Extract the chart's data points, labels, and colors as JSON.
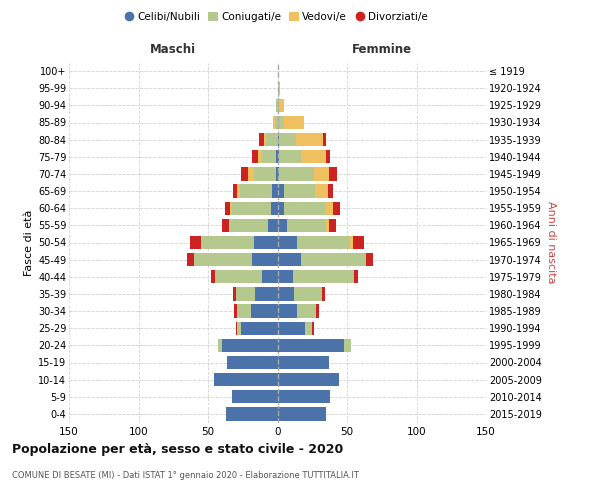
{
  "age_groups": [
    "0-4",
    "5-9",
    "10-14",
    "15-19",
    "20-24",
    "25-29",
    "30-34",
    "35-39",
    "40-44",
    "45-49",
    "50-54",
    "55-59",
    "60-64",
    "65-69",
    "70-74",
    "75-79",
    "80-84",
    "85-89",
    "90-94",
    "95-99",
    "100+"
  ],
  "birth_years": [
    "2015-2019",
    "2010-2014",
    "2005-2009",
    "2000-2004",
    "1995-1999",
    "1990-1994",
    "1985-1989",
    "1980-1984",
    "1975-1979",
    "1970-1974",
    "1965-1969",
    "1960-1964",
    "1955-1959",
    "1950-1954",
    "1945-1949",
    "1940-1944",
    "1935-1939",
    "1930-1934",
    "1925-1929",
    "1920-1924",
    "≤ 1919"
  ],
  "male": {
    "celibi": [
      37,
      33,
      46,
      36,
      40,
      26,
      19,
      16,
      11,
      18,
      17,
      7,
      5,
      4,
      1,
      1,
      0,
      0,
      0,
      0,
      0
    ],
    "coniugati": [
      0,
      0,
      0,
      0,
      3,
      3,
      10,
      14,
      34,
      42,
      37,
      27,
      28,
      23,
      16,
      10,
      8,
      2,
      1,
      0,
      0
    ],
    "vedovi": [
      0,
      0,
      0,
      0,
      0,
      0,
      0,
      0,
      0,
      0,
      1,
      1,
      1,
      2,
      4,
      3,
      2,
      1,
      0,
      0,
      0
    ],
    "divorziati": [
      0,
      0,
      0,
      0,
      0,
      1,
      2,
      2,
      3,
      5,
      8,
      5,
      4,
      3,
      5,
      4,
      3,
      0,
      0,
      0,
      0
    ]
  },
  "female": {
    "nubili": [
      35,
      38,
      44,
      37,
      48,
      20,
      14,
      12,
      11,
      17,
      14,
      7,
      5,
      5,
      1,
      1,
      1,
      0,
      0,
      0,
      0
    ],
    "coniugate": [
      0,
      0,
      0,
      0,
      5,
      5,
      14,
      20,
      44,
      47,
      38,
      28,
      30,
      22,
      25,
      16,
      12,
      5,
      1,
      1,
      0
    ],
    "vedove": [
      0,
      0,
      0,
      0,
      0,
      0,
      0,
      0,
      0,
      0,
      2,
      2,
      5,
      9,
      11,
      18,
      20,
      14,
      4,
      1,
      0
    ],
    "divorziate": [
      0,
      0,
      0,
      0,
      0,
      1,
      2,
      2,
      3,
      5,
      8,
      5,
      5,
      4,
      6,
      3,
      2,
      0,
      0,
      0,
      0
    ]
  },
  "colors": {
    "celibi_nubili": "#4c72aa",
    "coniugati": "#b5c98e",
    "vedovi": "#f0c060",
    "divorziati": "#cc2222"
  },
  "xlim": 150,
  "title": "Popolazione per età, sesso e stato civile - 2020",
  "subtitle": "COMUNE DI BESATE (MI) - Dati ISTAT 1° gennaio 2020 - Elaborazione TUTTITALIA.IT",
  "ylabel_left": "Fasce di età",
  "ylabel_right": "Anni di nascita",
  "header_left": "Maschi",
  "header_right": "Femmine",
  "bg_color": "#ffffff",
  "grid_color": "#cccccc",
  "legend": [
    "Celibi/Nubili",
    "Coniugati/e",
    "Vedovi/e",
    "Divorziati/e"
  ]
}
